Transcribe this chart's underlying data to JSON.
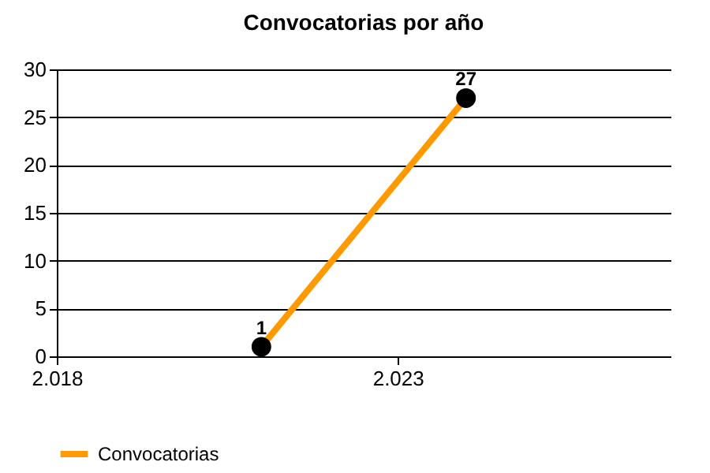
{
  "chart_data": {
    "type": "line",
    "title": "Convocatorias por año",
    "x": [
      2021,
      2024
    ],
    "series": [
      {
        "name": "Convocatorias",
        "color": "#ff9900",
        "values": [
          1,
          27
        ]
      }
    ],
    "xlim": [
      2018,
      2027
    ],
    "xticks": [
      {
        "value": 2018,
        "label": "2.018"
      },
      {
        "value": 2023,
        "label": "2.023"
      }
    ],
    "ylim": [
      0,
      30
    ],
    "yticks": [
      0,
      5,
      10,
      15,
      20,
      25,
      30
    ],
    "grid": "y",
    "marker": "circle",
    "line_style": "solid",
    "data_labels": true,
    "legend": "bottom left"
  }
}
